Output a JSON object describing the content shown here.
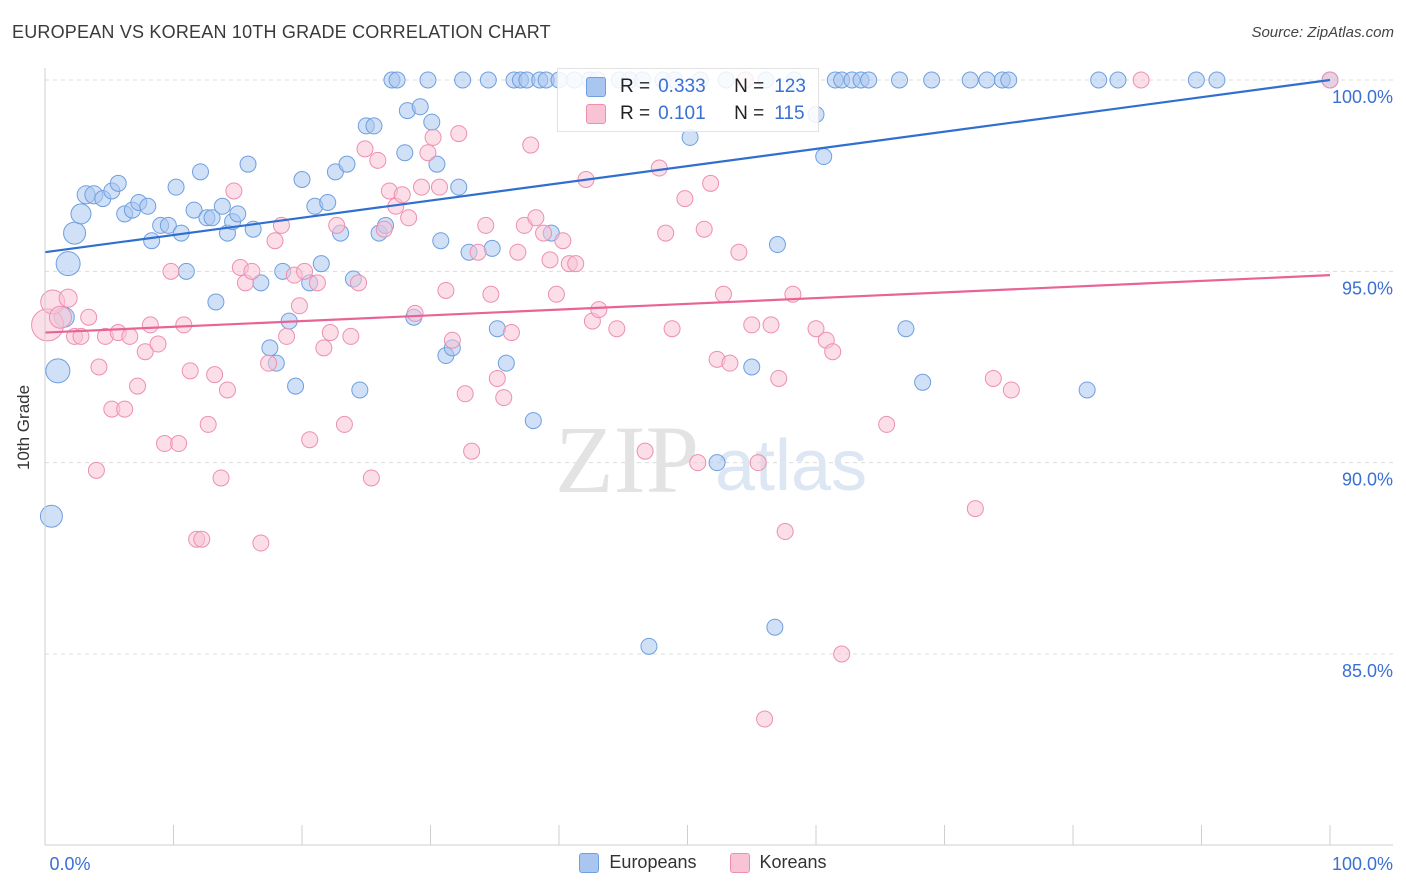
{
  "title": "EUROPEAN VS KOREAN 10TH GRADE CORRELATION CHART",
  "source": "Source: ZipAtlas.com",
  "watermark": {
    "zip": "ZIP",
    "atlas": "atlas"
  },
  "stats": [
    {
      "r_label": "R =",
      "r": "0.333",
      "n_label": "N =",
      "n": "123",
      "color": "#a9c6f0",
      "border": "#6f9fe0"
    },
    {
      "r_label": "R =",
      "r": "0.101",
      "n_label": "N =",
      "n": "115",
      "color": "#f8c3d5",
      "border": "#ee8fb0"
    }
  ],
  "legend": [
    {
      "label": "Europeans",
      "color": "#a9c6f0",
      "border": "#6f9fe0"
    },
    {
      "label": "Koreans",
      "color": "#f8c3d5",
      "border": "#ee8fb0"
    }
  ],
  "chart_data": {
    "type": "scatter",
    "ylabel": "10th Grade",
    "xlim": [
      0,
      100
    ],
    "ylim": [
      80.5,
      100.7
    ],
    "x_tick_labels": [
      "0.0%",
      "100.0%"
    ],
    "y_ticks": [
      85,
      90,
      95,
      100
    ],
    "y_tick_labels": [
      "85.0%",
      "90.0%",
      "95.0%",
      "100.0%"
    ],
    "grid": true,
    "series": [
      {
        "name": "Europeans",
        "color": "#6f9fe0",
        "fill": "#a9c6f0",
        "trend": {
          "x": [
            0,
            100
          ],
          "y": [
            95.5,
            100.0
          ],
          "color": "#2f6fd0"
        },
        "points": [
          [
            0.5,
            88.6,
            11
          ],
          [
            1,
            92.4,
            12
          ],
          [
            1.5,
            93.8,
            10
          ],
          [
            1.8,
            95.2,
            12
          ],
          [
            2.3,
            96.0,
            11
          ],
          [
            2.8,
            96.5,
            10
          ],
          [
            3.2,
            97.0,
            9
          ],
          [
            3.8,
            97.0,
            9
          ],
          [
            4.5,
            96.9,
            8
          ],
          [
            5.2,
            97.1,
            8
          ],
          [
            5.7,
            97.3,
            8
          ],
          [
            6.2,
            96.5,
            8
          ],
          [
            6.8,
            96.6,
            8
          ],
          [
            7.3,
            96.8,
            8
          ],
          [
            8.0,
            96.7,
            8
          ],
          [
            8.3,
            95.8,
            8
          ],
          [
            9.0,
            96.2,
            8
          ],
          [
            9.6,
            96.2,
            8
          ],
          [
            10.2,
            97.2,
            8
          ],
          [
            10.6,
            96.0,
            8
          ],
          [
            11.0,
            95.0,
            8
          ],
          [
            11.6,
            96.6,
            8
          ],
          [
            12.1,
            97.6,
            8
          ],
          [
            12.6,
            96.4,
            8
          ],
          [
            13.0,
            96.4,
            8
          ],
          [
            13.3,
            94.2,
            8
          ],
          [
            13.8,
            96.7,
            8
          ],
          [
            14.2,
            96.0,
            8
          ],
          [
            14.6,
            96.3,
            8
          ],
          [
            15.0,
            96.5,
            8
          ],
          [
            15.8,
            97.8,
            8
          ],
          [
            16.2,
            96.1,
            8
          ],
          [
            16.8,
            94.7,
            8
          ],
          [
            17.5,
            93.0,
            8
          ],
          [
            18.0,
            92.6,
            8
          ],
          [
            18.5,
            95.0,
            8
          ],
          [
            19.0,
            93.7,
            8
          ],
          [
            19.5,
            92.0,
            8
          ],
          [
            20.0,
            97.4,
            8
          ],
          [
            20.6,
            94.7,
            8
          ],
          [
            21.0,
            96.7,
            8
          ],
          [
            21.5,
            95.2,
            8
          ],
          [
            22.0,
            96.8,
            8
          ],
          [
            22.6,
            97.6,
            8
          ],
          [
            23.0,
            96.0,
            8
          ],
          [
            23.5,
            97.8,
            8
          ],
          [
            24.0,
            94.8,
            8
          ],
          [
            24.5,
            91.9,
            8
          ],
          [
            25.0,
            98.8,
            8
          ],
          [
            25.6,
            98.8,
            8
          ],
          [
            26.0,
            96.0,
            8
          ],
          [
            26.5,
            96.2,
            8
          ],
          [
            27.0,
            100.0,
            8
          ],
          [
            27.4,
            100.0,
            8
          ],
          [
            28.0,
            98.1,
            8
          ],
          [
            28.2,
            99.2,
            8
          ],
          [
            28.7,
            93.8,
            8
          ],
          [
            29.2,
            99.3,
            8
          ],
          [
            29.8,
            100.0,
            8
          ],
          [
            30.1,
            98.9,
            8
          ],
          [
            30.5,
            97.8,
            8
          ],
          [
            30.8,
            95.8,
            8
          ],
          [
            31.2,
            92.8,
            8
          ],
          [
            31.7,
            93.0,
            8
          ],
          [
            32.2,
            97.2,
            8
          ],
          [
            32.5,
            100.0,
            8
          ],
          [
            33.0,
            95.5,
            8
          ],
          [
            34.5,
            100.0,
            8
          ],
          [
            34.8,
            95.6,
            8
          ],
          [
            35.2,
            93.5,
            8
          ],
          [
            35.9,
            92.6,
            8
          ],
          [
            36.5,
            100.0,
            8
          ],
          [
            37.0,
            100.0,
            8
          ],
          [
            37.5,
            100.0,
            8
          ],
          [
            38.0,
            91.1,
            8
          ],
          [
            38.5,
            100.0,
            8
          ],
          [
            39.0,
            100.0,
            8
          ],
          [
            39.4,
            96.0,
            8
          ],
          [
            40.0,
            100.0,
            8
          ],
          [
            41.2,
            100.0,
            8
          ],
          [
            42.4,
            100.0,
            8
          ],
          [
            43.0,
            100.0,
            8
          ],
          [
            44.7,
            100.0,
            8
          ],
          [
            45.5,
            100.0,
            8
          ],
          [
            46.5,
            100.0,
            8
          ],
          [
            47.0,
            85.2,
            8
          ],
          [
            48.1,
            100.0,
            8
          ],
          [
            49.0,
            100.0,
            8
          ],
          [
            50.2,
            98.5,
            8
          ],
          [
            51.0,
            100.0,
            8
          ],
          [
            52.3,
            90.0,
            8
          ],
          [
            53.0,
            100.0,
            8
          ],
          [
            54.5,
            100.0,
            8
          ],
          [
            55.0,
            92.5,
            8
          ],
          [
            56.1,
            100.0,
            8
          ],
          [
            56.8,
            85.7,
            8
          ],
          [
            57.0,
            95.7,
            8
          ],
          [
            58.3,
            100.0,
            8
          ],
          [
            60.0,
            99.1,
            8
          ],
          [
            60.6,
            98.0,
            8
          ],
          [
            61.5,
            100.0,
            8
          ],
          [
            62.0,
            100.0,
            8
          ],
          [
            62.8,
            100.0,
            8
          ],
          [
            63.5,
            100.0,
            8
          ],
          [
            64.1,
            100.0,
            8
          ],
          [
            66.5,
            100.0,
            8
          ],
          [
            67.0,
            93.5,
            8
          ],
          [
            68.3,
            92.1,
            8
          ],
          [
            69.0,
            100.0,
            8
          ],
          [
            72.0,
            100.0,
            8
          ],
          [
            73.3,
            100.0,
            8
          ],
          [
            74.5,
            100.0,
            8
          ],
          [
            75.0,
            100.0,
            8
          ],
          [
            81.1,
            91.9,
            8
          ],
          [
            82.0,
            100.0,
            8
          ],
          [
            83.5,
            100.0,
            8
          ],
          [
            89.6,
            100.0,
            8
          ],
          [
            91.2,
            100.0,
            8
          ],
          [
            100.0,
            100.0,
            8
          ]
        ]
      },
      {
        "name": "Koreans",
        "color": "#ee8fb0",
        "fill": "#f8c3d5",
        "trend": {
          "x": [
            0,
            100
          ],
          "y": [
            93.4,
            94.9
          ],
          "color": "#e86496"
        },
        "points": [
          [
            0.2,
            93.6,
            16
          ],
          [
            0.6,
            94.2,
            12
          ],
          [
            1.2,
            93.8,
            11
          ],
          [
            1.8,
            94.3,
            9
          ],
          [
            2.3,
            93.3,
            8
          ],
          [
            2.8,
            93.3,
            8
          ],
          [
            3.4,
            93.8,
            8
          ],
          [
            4.0,
            89.8,
            8
          ],
          [
            4.2,
            92.5,
            8
          ],
          [
            4.7,
            93.3,
            8
          ],
          [
            5.2,
            91.4,
            8
          ],
          [
            5.7,
            93.4,
            8
          ],
          [
            6.2,
            91.4,
            8
          ],
          [
            6.6,
            93.3,
            8
          ],
          [
            7.2,
            92.0,
            8
          ],
          [
            7.8,
            92.9,
            8
          ],
          [
            8.2,
            93.6,
            8
          ],
          [
            8.8,
            93.1,
            8
          ],
          [
            9.3,
            90.5,
            8
          ],
          [
            9.8,
            95.0,
            8
          ],
          [
            10.4,
            90.5,
            8
          ],
          [
            10.8,
            93.6,
            8
          ],
          [
            11.3,
            92.4,
            8
          ],
          [
            11.8,
            88.0,
            8
          ],
          [
            12.2,
            88.0,
            8
          ],
          [
            12.7,
            91.0,
            8
          ],
          [
            13.2,
            92.3,
            8
          ],
          [
            13.7,
            89.6,
            8
          ],
          [
            14.2,
            91.9,
            8
          ],
          [
            14.7,
            97.1,
            8
          ],
          [
            15.2,
            95.1,
            8
          ],
          [
            15.6,
            94.7,
            8
          ],
          [
            16.1,
            95.0,
            8
          ],
          [
            16.8,
            87.9,
            8
          ],
          [
            17.4,
            92.6,
            8
          ],
          [
            17.9,
            95.8,
            8
          ],
          [
            18.4,
            96.2,
            8
          ],
          [
            18.8,
            93.3,
            8
          ],
          [
            19.4,
            94.9,
            8
          ],
          [
            19.8,
            94.1,
            8
          ],
          [
            20.2,
            95.0,
            8
          ],
          [
            20.6,
            90.6,
            8
          ],
          [
            21.2,
            94.7,
            8
          ],
          [
            21.7,
            93.0,
            8
          ],
          [
            22.2,
            93.4,
            8
          ],
          [
            22.7,
            96.2,
            8
          ],
          [
            23.3,
            91.0,
            8
          ],
          [
            23.8,
            93.3,
            8
          ],
          [
            24.4,
            94.7,
            8
          ],
          [
            24.9,
            98.2,
            8
          ],
          [
            25.4,
            89.6,
            8
          ],
          [
            25.9,
            97.9,
            8
          ],
          [
            26.4,
            96.1,
            8
          ],
          [
            26.8,
            97.1,
            8
          ],
          [
            27.3,
            96.7,
            8
          ],
          [
            27.8,
            97.0,
            8
          ],
          [
            28.3,
            96.4,
            8
          ],
          [
            28.8,
            93.9,
            8
          ],
          [
            29.3,
            97.2,
            8
          ],
          [
            29.8,
            98.1,
            8
          ],
          [
            30.2,
            98.5,
            8
          ],
          [
            30.7,
            97.2,
            8
          ],
          [
            31.2,
            94.5,
            8
          ],
          [
            31.7,
            93.2,
            8
          ],
          [
            32.2,
            98.6,
            8
          ],
          [
            32.7,
            91.8,
            8
          ],
          [
            33.2,
            90.3,
            8
          ],
          [
            33.7,
            95.5,
            8
          ],
          [
            34.3,
            96.2,
            8
          ],
          [
            34.7,
            94.4,
            8
          ],
          [
            35.2,
            92.2,
            8
          ],
          [
            35.7,
            91.7,
            8
          ],
          [
            36.3,
            93.4,
            8
          ],
          [
            36.8,
            95.5,
            8
          ],
          [
            37.3,
            96.2,
            8
          ],
          [
            37.8,
            98.3,
            8
          ],
          [
            38.2,
            96.4,
            8
          ],
          [
            38.8,
            96.0,
            8
          ],
          [
            39.3,
            95.3,
            8
          ],
          [
            39.8,
            94.4,
            8
          ],
          [
            40.3,
            95.8,
            8
          ],
          [
            40.8,
            95.2,
            8
          ],
          [
            41.3,
            95.2,
            8
          ],
          [
            42.1,
            97.4,
            8
          ],
          [
            42.6,
            93.7,
            8
          ],
          [
            43.1,
            94.0,
            8
          ],
          [
            44.5,
            93.5,
            8
          ],
          [
            46.7,
            90.3,
            8
          ],
          [
            47.8,
            97.7,
            8
          ],
          [
            48.3,
            96.0,
            8
          ],
          [
            48.8,
            93.5,
            8
          ],
          [
            49.8,
            96.9,
            8
          ],
          [
            50.8,
            90.0,
            8
          ],
          [
            51.3,
            96.1,
            8
          ],
          [
            51.8,
            97.3,
            8
          ],
          [
            52.3,
            92.7,
            8
          ],
          [
            52.8,
            94.4,
            8
          ],
          [
            53.3,
            92.6,
            8
          ],
          [
            54.0,
            95.5,
            8
          ],
          [
            54.5,
            100.0,
            8
          ],
          [
            55.0,
            93.6,
            8
          ],
          [
            55.5,
            90.0,
            8
          ],
          [
            56.0,
            83.3,
            8
          ],
          [
            56.5,
            93.6,
            8
          ],
          [
            57.1,
            92.2,
            8
          ],
          [
            57.6,
            88.2,
            8
          ],
          [
            58.2,
            94.4,
            8
          ],
          [
            60.0,
            93.5,
            8
          ],
          [
            60.8,
            93.2,
            8
          ],
          [
            61.3,
            92.9,
            8
          ],
          [
            62.0,
            85.0,
            8
          ],
          [
            65.5,
            91.0,
            8
          ],
          [
            72.4,
            88.8,
            8
          ],
          [
            73.8,
            92.2,
            8
          ],
          [
            75.2,
            91.9,
            8
          ],
          [
            85.3,
            100.0,
            8
          ],
          [
            100.0,
            100.0,
            8
          ]
        ]
      }
    ]
  }
}
